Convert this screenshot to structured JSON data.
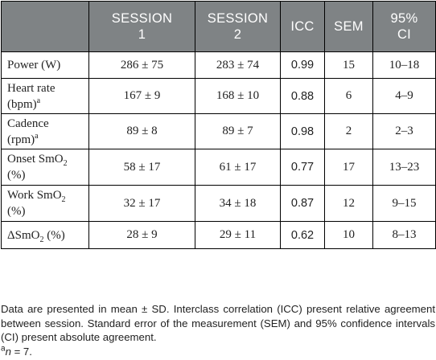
{
  "table": {
    "headers": [
      "",
      "SESSION 1",
      "SESSION 2",
      "ICC",
      "SEM",
      "95% CI"
    ],
    "header_lines": [
      [
        ""
      ],
      [
        "SESSION",
        "1"
      ],
      [
        "SESSION",
        "2"
      ],
      [
        "ICC"
      ],
      [
        "SEM"
      ],
      [
        "95%",
        "CI"
      ]
    ],
    "rows": [
      {
        "label_a": "Power (W)",
        "sup": "",
        "label_b": "",
        "s1": "286 ± 75",
        "s2": "283 ± 74",
        "icc": "0.99",
        "sem": "15",
        "ci": "10–18"
      },
      {
        "label_a": "Heart rate",
        "label_b": "(bpm)",
        "sup": "a",
        "s1": "167 ± 9",
        "s2": "168 ± 10",
        "icc": "0.88",
        "sem": "6",
        "ci": "4–9"
      },
      {
        "label_a": "Cadence",
        "label_b": "(rpm)",
        "sup": "a",
        "s1": "89 ± 8",
        "s2": "89 ± 7",
        "icc": "0.98",
        "sem": "2",
        "ci": "2–3"
      },
      {
        "label_a": "Onset SmO",
        "sub": "2",
        "label_b": "(%)",
        "s1": "58 ± 17",
        "s2": "61 ± 17",
        "icc": "0.77",
        "sem": "17",
        "ci": "13–23"
      },
      {
        "label_a": "Work SmO",
        "sub": "2",
        "label_b": "(%)",
        "s1": "32 ± 17",
        "s2": "34 ± 18",
        "icc": "0.87",
        "sem": "12",
        "ci": "9–15"
      },
      {
        "label_a": "ΔSmO",
        "sub": "2",
        "label_c": " (%)",
        "s1": "28 ± 9",
        "s2": "29 ± 11",
        "icc": "0.62",
        "sem": "10",
        "ci": "8–13"
      }
    ]
  },
  "note": {
    "text": "Data are presented in mean ± SD. Interclass correlation (ICC) present relative agreement between session. Standard error of the measurement (SEM) and 95% confidence intervals (CI) present absolute agreement.",
    "footnote_sup": "a",
    "footnote_var": "n",
    "footnote_rest": " = 7."
  }
}
